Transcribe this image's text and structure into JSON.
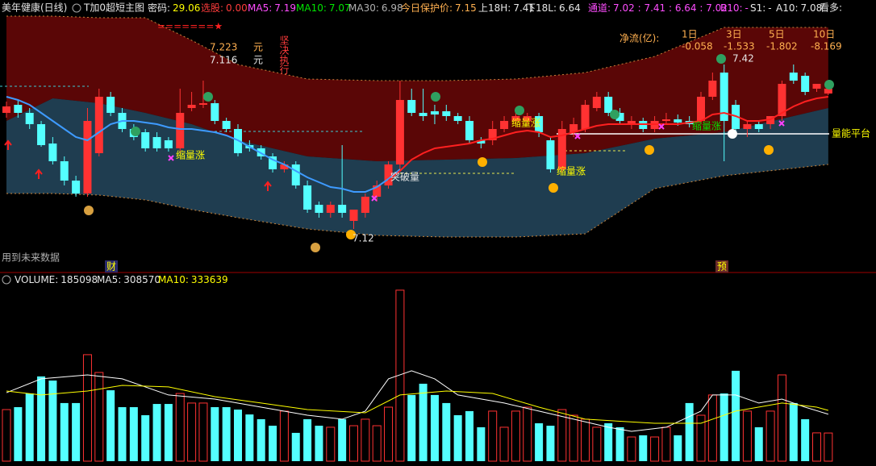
{
  "header": {
    "title": "美年健康(日线)",
    "indicator": "T加0超短主图",
    "stats": [
      {
        "label": "密码:",
        "value": 29.06
      },
      {
        "label": "选股:",
        "value": "0.00"
      },
      {
        "label": "MA5:",
        "value": 7.19
      },
      {
        "label": "MA10:",
        "value": 7.07
      },
      {
        "label": "MA30:",
        "value": 6.98
      },
      {
        "label": "今日保护价:",
        "value": 7.15
      },
      {
        "label": "上18H:",
        "value": 7.41
      },
      {
        "label": "下18L:",
        "value": 6.64
      },
      {
        "label": "通道:",
        "value": "7.02 : 7.41 : 6.64 : 7.02"
      },
      {
        "label": "B10:",
        "value": "-"
      },
      {
        "label": "S1:",
        "value": "-"
      },
      {
        "label": "A10:",
        "value": 7.08
      },
      {
        "label": "看多:"
      }
    ]
  },
  "annotations": {
    "price_marks": [
      7.223,
      7.116
    ],
    "units": [
      "元",
      "元"
    ],
    "slogan": "坚决执行",
    "flow": {
      "label": "净流(亿):",
      "periods": [
        {
          "name": "1日",
          "value": -0.058
        },
        {
          "name": "3日",
          "value": -1.533
        },
        {
          "name": "5日",
          "value": -1.802
        },
        {
          "name": "10日",
          "value": -8.169
        }
      ]
    },
    "tags": [
      "缩量涨",
      "缩量涨",
      "缩量涨",
      "缩量涨",
      "突破量",
      "量能平台"
    ],
    "high_label": 7.42,
    "low_label": 7.12,
    "warning": "用到未来数据",
    "events": [
      "财",
      "预"
    ]
  },
  "chart_data": [
    {
      "type": "candlestick",
      "ylim": [
        6.45,
        7.9
      ],
      "up_color": "#ff3232",
      "down_color": "#54ffff",
      "open": [
        7.25,
        7.3,
        7.25,
        7.18,
        7.06,
        6.95,
        6.83,
        6.75,
        7.0,
        7.35,
        7.25,
        7.15,
        7.13,
        7.1,
        7.08,
        7.03,
        7.28,
        7.3,
        7.31,
        7.2,
        7.15,
        7.05,
        7.03,
        6.98,
        6.9,
        6.93,
        6.8,
        6.68,
        6.63,
        6.68,
        6.58,
        6.63,
        6.73,
        6.8,
        6.93,
        7.33,
        7.25,
        7.26,
        7.26,
        7.23,
        7.2,
        7.08,
        7.08,
        7.15,
        7.2,
        7.2,
        7.23,
        7.08,
        6.9,
        7.13,
        7.15,
        7.28,
        7.35,
        7.25,
        7.18,
        7.2,
        7.15,
        7.2,
        7.21,
        7.2,
        7.2,
        7.35,
        7.5,
        7.3,
        7.15,
        7.18,
        7.18,
        7.23,
        7.5,
        7.48,
        7.4,
        7.37
      ],
      "high": [
        7.32,
        7.33,
        7.28,
        7.2,
        7.1,
        6.98,
        6.86,
        7.28,
        7.4,
        7.38,
        7.28,
        7.18,
        7.15,
        7.13,
        7.1,
        7.4,
        7.38,
        7.45,
        7.33,
        7.22,
        7.18,
        7.08,
        7.05,
        7.0,
        6.95,
        6.95,
        6.83,
        6.7,
        6.7,
        7.05,
        6.65,
        6.75,
        6.83,
        6.95,
        7.45,
        7.4,
        7.4,
        7.3,
        7.3,
        7.25,
        7.23,
        7.1,
        7.2,
        7.23,
        7.25,
        7.25,
        7.25,
        7.1,
        7.2,
        7.22,
        7.33,
        7.38,
        7.38,
        7.28,
        7.23,
        7.22,
        7.23,
        7.25,
        7.24,
        7.23,
        7.38,
        7.5,
        7.55,
        7.33,
        7.2,
        7.2,
        7.23,
        7.45,
        7.55,
        7.5,
        7.43,
        7.43
      ],
      "low": [
        7.22,
        7.22,
        7.15,
        7.04,
        6.93,
        6.8,
        6.73,
        6.73,
        6.98,
        7.23,
        7.13,
        7.08,
        7.01,
        7.01,
        7.01,
        7.0,
        7.26,
        7.28,
        7.18,
        7.13,
        6.98,
        7.01,
        6.96,
        6.88,
        6.88,
        6.78,
        6.63,
        6.6,
        6.6,
        6.6,
        6.53,
        6.6,
        6.7,
        6.78,
        6.9,
        7.23,
        7.2,
        7.18,
        7.2,
        7.18,
        7.06,
        7.03,
        7.05,
        7.13,
        7.18,
        7.18,
        7.1,
        6.88,
        6.88,
        7.1,
        7.13,
        7.26,
        7.23,
        7.18,
        7.15,
        7.13,
        7.13,
        7.18,
        7.17,
        7.16,
        7.18,
        7.33,
        6.95,
        7.13,
        7.1,
        7.13,
        7.15,
        7.2,
        7.43,
        7.36,
        7.38,
        7.36
      ],
      "close": [
        7.29,
        7.25,
        7.18,
        7.05,
        6.95,
        6.83,
        6.75,
        7.2,
        7.35,
        7.25,
        7.15,
        7.1,
        7.03,
        7.03,
        7.03,
        7.25,
        7.3,
        7.31,
        7.2,
        7.15,
        7.0,
        7.03,
        6.98,
        6.9,
        6.93,
        6.8,
        6.65,
        6.63,
        6.68,
        6.63,
        6.65,
        6.73,
        6.8,
        6.93,
        7.33,
        7.25,
        7.23,
        7.24,
        7.23,
        7.2,
        7.08,
        7.06,
        7.15,
        7.2,
        7.23,
        7.23,
        7.13,
        6.9,
        7.15,
        7.18,
        7.3,
        7.35,
        7.25,
        7.2,
        7.2,
        7.15,
        7.2,
        7.21,
        7.19,
        7.18,
        7.35,
        7.45,
        7.2,
        7.15,
        7.18,
        7.15,
        7.23,
        7.43,
        7.45,
        7.38,
        7.43,
        7.4
      ],
      "lines": [
        {
          "color": "#3e9bff",
          "values": [
            7.35,
            7.33,
            7.3,
            7.25,
            7.2,
            7.15,
            7.1,
            7.08,
            7.13,
            7.18,
            7.2,
            7.2,
            7.19,
            7.18,
            7.16,
            7.15,
            7.15,
            7.14,
            7.13,
            7.11,
            7.08,
            7.04,
            7.0,
            6.96,
            6.93,
            6.89,
            6.85,
            6.82,
            6.79,
            6.78,
            6.76,
            6.76,
            6.79,
            6.84,
            6.9,
            null,
            null,
            null,
            null,
            null,
            null,
            null,
            null,
            null,
            null,
            null,
            null,
            null,
            null,
            null,
            null,
            null,
            null,
            null,
            null,
            null,
            null,
            null,
            null,
            null,
            null,
            null,
            null,
            null,
            null,
            null,
            null,
            null,
            null,
            null,
            null,
            null
          ]
        },
        {
          "color": "#ff2020",
          "values": [
            null,
            null,
            null,
            null,
            null,
            null,
            null,
            null,
            null,
            null,
            null,
            null,
            null,
            null,
            null,
            null,
            null,
            null,
            null,
            null,
            null,
            null,
            null,
            null,
            null,
            null,
            null,
            null,
            null,
            null,
            null,
            null,
            null,
            6.83,
            6.89,
            6.96,
            7.0,
            7.03,
            7.04,
            7.05,
            7.06,
            7.08,
            7.09,
            7.11,
            7.13,
            7.14,
            7.13,
            7.1,
            7.11,
            7.13,
            7.15,
            7.17,
            7.18,
            7.18,
            7.18,
            7.18,
            7.18,
            7.18,
            7.18,
            7.19,
            7.2,
            7.24,
            7.25,
            7.23,
            7.2,
            7.2,
            7.21,
            7.25,
            7.29,
            7.32,
            7.34,
            7.35
          ]
        }
      ],
      "band": {
        "x": [
          0,
          4,
          8,
          12,
          16,
          20,
          26,
          32,
          38,
          44,
          50,
          56,
          62,
          71
        ],
        "upper": [
          7.85,
          7.85,
          7.84,
          7.84,
          7.7,
          7.55,
          7.46,
          7.45,
          7.45,
          7.46,
          7.5,
          7.6,
          7.78,
          7.78
        ],
        "middle": [
          7.2,
          7.34,
          7.31,
          7.25,
          7.18,
          7.08,
          6.98,
          6.95,
          6.96,
          6.97,
          7.0,
          7.09,
          7.13,
          7.28
        ],
        "lower": [
          6.75,
          6.75,
          6.74,
          6.71,
          6.65,
          6.6,
          6.53,
          6.49,
          6.48,
          6.48,
          6.5,
          6.78,
          6.86,
          6.93
        ],
        "upper_color": "#5a0606",
        "lower_color": "#1f3d50"
      }
    },
    {
      "type": "bar",
      "title": "VOLUME:",
      "ylim": [
        0,
        1150000
      ],
      "values": [
        339000,
        355000,
        445000,
        557000,
        530000,
        382000,
        382000,
        700000,
        583000,
        466000,
        355000,
        355000,
        302000,
        376000,
        376000,
        445000,
        382000,
        382000,
        355000,
        355000,
        339000,
        307000,
        276000,
        233000,
        329000,
        186000,
        276000,
        233000,
        223000,
        276000,
        233000,
        276000,
        233000,
        355000,
        1124000,
        435000,
        509000,
        435000,
        382000,
        302000,
        329000,
        223000,
        329000,
        223000,
        329000,
        355000,
        249000,
        233000,
        339000,
        302000,
        276000,
        223000,
        249000,
        223000,
        159000,
        170000,
        159000,
        223000,
        170000,
        382000,
        302000,
        435000,
        445000,
        594000,
        329000,
        223000,
        329000,
        567000,
        382000,
        276000,
        186000,
        185098
      ],
      "lines": [
        {
          "name": "MA5:",
          "color": "#ffffff",
          "x": [
            0,
            3,
            7,
            10,
            14,
            18,
            22,
            26,
            29,
            31,
            33,
            35,
            37,
            39,
            43,
            46,
            49,
            52,
            54,
            57,
            60,
            61,
            63,
            65,
            67,
            69,
            71
          ],
          "values": [
            450000,
            541000,
            567000,
            541000,
            435000,
            408000,
            355000,
            302000,
            276000,
            329000,
            541000,
            594000,
            541000,
            435000,
            382000,
            329000,
            276000,
            223000,
            196000,
            223000,
            329000,
            435000,
            435000,
            382000,
            408000,
            355000,
            308570
          ]
        },
        {
          "name": "MA10:",
          "color": "#ffff00",
          "x": [
            0,
            3,
            7,
            10,
            14,
            18,
            22,
            26,
            31,
            34,
            38,
            42,
            46,
            50,
            56,
            60,
            63,
            67,
            70,
            71
          ],
          "values": [
            461000,
            435000,
            461000,
            498000,
            488000,
            424000,
            382000,
            339000,
            318000,
            435000,
            461000,
            445000,
            355000,
            276000,
            249000,
            249000,
            329000,
            382000,
            355000,
            333639
          ]
        }
      ]
    }
  ]
}
